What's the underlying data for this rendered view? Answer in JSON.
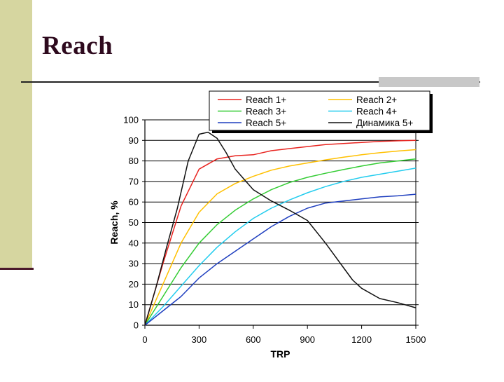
{
  "slide": {
    "title": "Reach"
  },
  "colors": {
    "accent_bar": "#d6d6a0",
    "title_text": "#2e0a1e"
  },
  "chart_data": {
    "type": "line",
    "xlabel": "TRP",
    "ylabel": "Reach, %",
    "xlim": [
      0,
      1500
    ],
    "ylim": [
      0,
      100
    ],
    "x_ticks": [
      "0",
      "300",
      "600",
      "900",
      "1200",
      "1500"
    ],
    "y_ticks": [
      "0",
      "10",
      "20",
      "30",
      "40",
      "50",
      "60",
      "70",
      "80",
      "90",
      "100"
    ],
    "grid": true,
    "legend_position": "top",
    "series": [
      {
        "name": "Reach 1+",
        "color": "#e8231f",
        "points": [
          [
            0,
            0
          ],
          [
            100,
            30
          ],
          [
            200,
            58
          ],
          [
            300,
            76
          ],
          [
            400,
            81
          ],
          [
            500,
            82.5
          ],
          [
            600,
            83
          ],
          [
            700,
            85
          ],
          [
            800,
            86
          ],
          [
            900,
            87
          ],
          [
            1000,
            88
          ],
          [
            1100,
            88.5
          ],
          [
            1200,
            89
          ],
          [
            1300,
            89.5
          ],
          [
            1400,
            89.8
          ],
          [
            1500,
            90
          ]
        ]
      },
      {
        "name": "Reach 2+",
        "color": "#ffc000",
        "points": [
          [
            0,
            0
          ],
          [
            100,
            20
          ],
          [
            200,
            40
          ],
          [
            300,
            55
          ],
          [
            400,
            64
          ],
          [
            500,
            69
          ],
          [
            600,
            72.5
          ],
          [
            700,
            75.5
          ],
          [
            800,
            77.5
          ],
          [
            900,
            79
          ],
          [
            1000,
            80.5
          ],
          [
            1100,
            81.8
          ],
          [
            1200,
            83
          ],
          [
            1300,
            84
          ],
          [
            1400,
            84.8
          ],
          [
            1500,
            85.5
          ]
        ]
      },
      {
        "name": "Reach 3+",
        "color": "#33cc33",
        "points": [
          [
            0,
            0
          ],
          [
            100,
            14
          ],
          [
            200,
            28
          ],
          [
            300,
            40
          ],
          [
            400,
            49
          ],
          [
            500,
            56
          ],
          [
            600,
            61.5
          ],
          [
            700,
            66
          ],
          [
            800,
            69.5
          ],
          [
            900,
            72
          ],
          [
            1000,
            74
          ],
          [
            1100,
            75.8
          ],
          [
            1200,
            77.5
          ],
          [
            1300,
            79
          ],
          [
            1400,
            80
          ],
          [
            1500,
            81
          ]
        ]
      },
      {
        "name": "Reach 4+",
        "color": "#22ccee",
        "points": [
          [
            0,
            0
          ],
          [
            100,
            9
          ],
          [
            200,
            19
          ],
          [
            300,
            29
          ],
          [
            400,
            38
          ],
          [
            500,
            45.5
          ],
          [
            600,
            52
          ],
          [
            700,
            57
          ],
          [
            800,
            61
          ],
          [
            900,
            64.5
          ],
          [
            1000,
            67.5
          ],
          [
            1100,
            70
          ],
          [
            1200,
            72
          ],
          [
            1300,
            73.5
          ],
          [
            1400,
            75
          ],
          [
            1500,
            76.5
          ]
        ]
      },
      {
        "name": "Reach 5+",
        "color": "#1f3fbf",
        "points": [
          [
            0,
            0
          ],
          [
            100,
            7
          ],
          [
            200,
            14
          ],
          [
            300,
            23
          ],
          [
            400,
            30
          ],
          [
            500,
            36
          ],
          [
            600,
            42
          ],
          [
            700,
            48
          ],
          [
            800,
            53
          ],
          [
            900,
            57
          ],
          [
            1000,
            59.5
          ],
          [
            1100,
            60.5
          ],
          [
            1200,
            61.5
          ],
          [
            1300,
            62.5
          ],
          [
            1400,
            63
          ],
          [
            1500,
            63.8
          ]
        ]
      },
      {
        "name": "Динамика 5+",
        "color": "#111111",
        "points": [
          [
            0,
            0
          ],
          [
            60,
            18
          ],
          [
            120,
            38
          ],
          [
            180,
            57
          ],
          [
            240,
            80
          ],
          [
            300,
            93
          ],
          [
            350,
            94
          ],
          [
            400,
            91
          ],
          [
            450,
            84
          ],
          [
            500,
            76
          ],
          [
            550,
            71
          ],
          [
            600,
            66
          ],
          [
            700,
            60.5
          ],
          [
            800,
            56
          ],
          [
            900,
            51
          ],
          [
            1000,
            40
          ],
          [
            1100,
            28
          ],
          [
            1150,
            22
          ],
          [
            1200,
            18
          ],
          [
            1300,
            13
          ],
          [
            1400,
            11
          ],
          [
            1500,
            8.5
          ]
        ]
      }
    ]
  }
}
